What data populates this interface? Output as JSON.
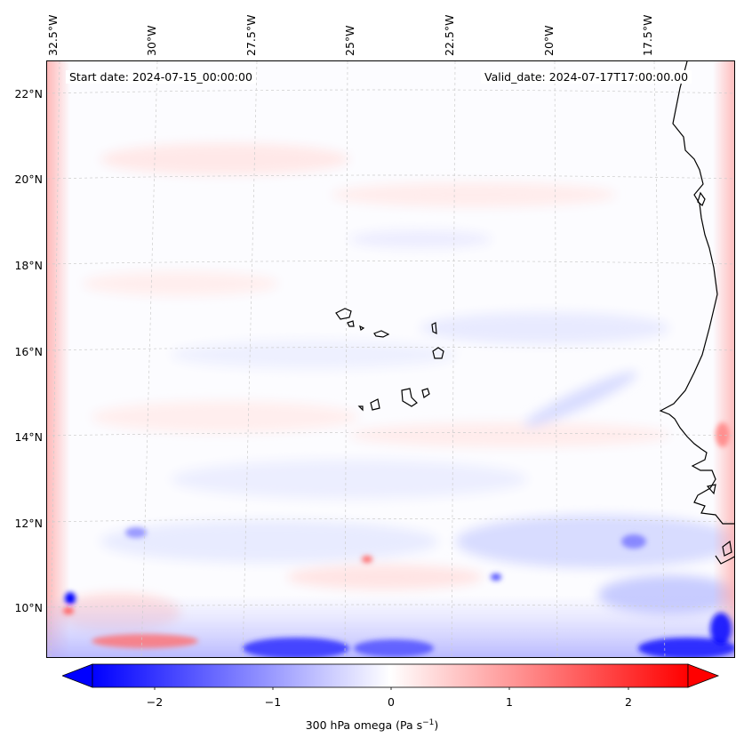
{
  "info": {
    "start_date": "Start date: 2024-07-15_00:00:00",
    "valid_date": "Valid_date: 2024-07-17T17:00:00.00"
  },
  "lon_labels": [
    "32.5°W",
    "30°W",
    "27.5°W",
    "25°W",
    "22.5°W",
    "20°W",
    "17.5°W"
  ],
  "lat_labels": [
    "22°N",
    "20°N",
    "18°N",
    "16°N",
    "14°N",
    "12°N",
    "10°N"
  ],
  "colorbar": {
    "ticks": [
      "−2",
      "−1",
      "0",
      "1",
      "2"
    ],
    "label_main": "300 hPa omega (Pa s",
    "label_sup": "−1",
    "label_end": ")",
    "min_color": "#0000ff",
    "mid_color": "#ffffff",
    "max_color": "#ff0000"
  },
  "colors": {
    "gridline": "#cccccc",
    "coastline": "#000000",
    "neg_field": "#2b2bff",
    "pos_field": "#ff4a4a"
  }
}
